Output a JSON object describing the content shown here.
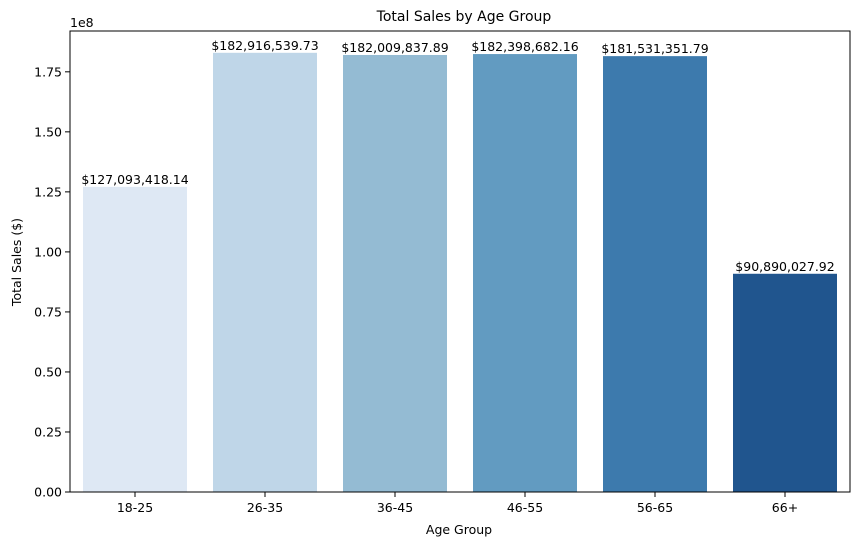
{
  "chart_data": {
    "type": "bar",
    "title": "Total Sales by Age Group",
    "xlabel": "Age Group",
    "ylabel": "Total Sales ($)",
    "y_scale_note": "1e8",
    "ylim": [
      0,
      192000000
    ],
    "yticks": [
      0,
      25000000,
      50000000,
      75000000,
      100000000,
      125000000,
      150000000,
      175000000
    ],
    "ytick_labels": [
      "0.00",
      "0.25",
      "0.50",
      "0.75",
      "1.00",
      "1.25",
      "1.50",
      "1.75"
    ],
    "categories": [
      "18-25",
      "26-35",
      "36-45",
      "46-55",
      "56-65",
      "66+"
    ],
    "values": [
      127093418.14,
      182916539.73,
      182009837.89,
      182398682.16,
      181531351.79,
      90890027.92
    ],
    "data_labels": [
      "$127,093,418.14",
      "$182,916,539.73",
      "$182,009,837.89",
      "$182,398,682.16",
      "$181,531,351.79",
      "$90,890,027.92"
    ],
    "colors": [
      "#dee8f4",
      "#bfd6e8",
      "#94bbd3",
      "#629bc1",
      "#3d7aad",
      "#20558e"
    ],
    "grid": false,
    "legend": "none"
  }
}
